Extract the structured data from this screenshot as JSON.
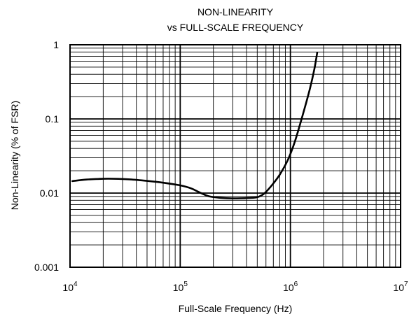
{
  "chart_data": {
    "type": "line",
    "title_lines": [
      "NON-LINEARITY",
      "vs FULL-SCALE FREQUENCY"
    ],
    "xlabel": "Full-Scale Frequency (Hz)",
    "ylabel": "Non-Linearity (% of FSR)",
    "x_scale": "log",
    "y_scale": "log",
    "xlim": [
      10000,
      10000000
    ],
    "ylim": [
      0.001,
      1
    ],
    "grid": true,
    "x_ticks": [
      {
        "value": 10000,
        "base": "10",
        "exp": "4"
      },
      {
        "value": 100000,
        "base": "10",
        "exp": "5"
      },
      {
        "value": 1000000,
        "base": "10",
        "exp": "6"
      },
      {
        "value": 10000000,
        "base": "10",
        "exp": "7"
      }
    ],
    "y_ticks": [
      {
        "value": 1,
        "label": "1"
      },
      {
        "value": 0.1,
        "label": "0.1"
      },
      {
        "value": 0.01,
        "label": "0.01"
      },
      {
        "value": 0.001,
        "label": "0.001"
      }
    ],
    "series": [
      {
        "x": [
          10500,
          14000,
          20000,
          25000,
          35000,
          50000,
          70000,
          100000,
          125000,
          150000,
          180000,
          220000,
          280000,
          350000,
          420000,
          500000,
          580000,
          680000,
          800000,
          950000,
          1100000,
          1300000,
          1500000,
          1650000,
          1750000
        ],
        "y": [
          0.0145,
          0.0152,
          0.0156,
          0.0156,
          0.0153,
          0.0146,
          0.0138,
          0.0127,
          0.0116,
          0.0102,
          0.0091,
          0.0087,
          0.0085,
          0.0085,
          0.0086,
          0.0088,
          0.0099,
          0.0128,
          0.0177,
          0.0282,
          0.05,
          0.116,
          0.252,
          0.47,
          0.78
        ]
      }
    ]
  }
}
